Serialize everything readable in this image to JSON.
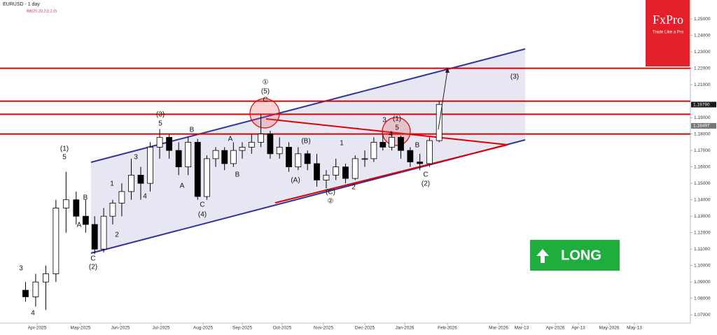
{
  "chart_data": {
    "type": "candlestick",
    "title": "EURUSD - 1 day",
    "subtitle": "BB(20,20,2,0,2,0)",
    "up_color": "#ffffff",
    "down_color": "#000000",
    "x": [
      "2025-03-24",
      "2025-03-31",
      "2025-04-07",
      "2025-04-14",
      "2025-04-21",
      "2025-04-28",
      "2025-05-05",
      "2025-05-12",
      "2025-05-19",
      "2025-05-26",
      "2025-06-02",
      "2025-06-09",
      "2025-06-16",
      "2025-06-23",
      "2025-06-30",
      "2025-07-07",
      "2025-07-14",
      "2025-07-21",
      "2025-07-28",
      "2025-08-04",
      "2025-08-11",
      "2025-08-18",
      "2025-08-25",
      "2025-09-01",
      "2025-09-08",
      "2025-09-15",
      "2025-09-22",
      "2025-09-29",
      "2025-10-06",
      "2025-10-13",
      "2025-10-20",
      "2025-10-27",
      "2025-11-03",
      "2025-11-10",
      "2025-11-17",
      "2025-11-24",
      "2025-12-01",
      "2025-12-08",
      "2025-12-15",
      "2025-12-22",
      "2025-12-29",
      "2026-01-05",
      "2026-01-12",
      "2026-01-19",
      "2026-01-26"
    ],
    "open": [
      1.085,
      1.081,
      1.09,
      1.095,
      1.135,
      1.14,
      1.13,
      1.125,
      1.11,
      1.13,
      1.138,
      1.145,
      1.155,
      1.15,
      1.172,
      1.178,
      1.17,
      1.16,
      1.175,
      1.142,
      1.165,
      1.17,
      1.162,
      1.17,
      1.172,
      1.175,
      1.18,
      1.168,
      1.172,
      1.16,
      1.168,
      1.162,
      1.152,
      1.155,
      1.16,
      1.153,
      1.165,
      1.165,
      1.175,
      1.172,
      1.178,
      1.17,
      1.163,
      1.162,
      1.176
    ],
    "high": [
      1.09,
      1.095,
      1.1,
      1.14,
      1.157,
      1.145,
      1.14,
      1.13,
      1.135,
      1.14,
      1.15,
      1.165,
      1.16,
      1.175,
      1.183,
      1.18,
      1.175,
      1.178,
      1.177,
      1.167,
      1.172,
      1.172,
      1.175,
      1.175,
      1.18,
      1.192,
      1.182,
      1.178,
      1.175,
      1.172,
      1.17,
      1.168,
      1.158,
      1.165,
      1.162,
      1.167,
      1.17,
      1.178,
      1.18,
      1.181,
      1.179,
      1.172,
      1.168,
      1.178,
      1.2
    ],
    "low": [
      1.078,
      1.075,
      1.073,
      1.09,
      1.12,
      1.125,
      1.12,
      1.107,
      1.108,
      1.125,
      1.13,
      1.14,
      1.14,
      1.145,
      1.165,
      1.165,
      1.155,
      1.155,
      1.14,
      1.14,
      1.16,
      1.158,
      1.16,
      1.165,
      1.168,
      1.172,
      1.165,
      1.165,
      1.157,
      1.158,
      1.158,
      1.148,
      1.147,
      1.152,
      1.15,
      1.152,
      1.16,
      1.163,
      1.17,
      1.17,
      1.165,
      1.16,
      1.158,
      1.16,
      1.175
    ],
    "close": [
      1.081,
      1.09,
      1.095,
      1.135,
      1.14,
      1.13,
      1.125,
      1.11,
      1.13,
      1.138,
      1.145,
      1.155,
      1.15,
      1.172,
      1.178,
      1.17,
      1.16,
      1.175,
      1.142,
      1.165,
      1.17,
      1.162,
      1.17,
      1.172,
      1.175,
      1.18,
      1.168,
      1.172,
      1.16,
      1.168,
      1.162,
      1.152,
      1.155,
      1.16,
      1.153,
      1.165,
      1.165,
      1.175,
      1.172,
      1.178,
      1.17,
      1.163,
      1.162,
      1.176,
      1.198
    ],
    "ylim": [
      1.065,
      1.2615
    ],
    "yticks": [
      {
        "value": 1.07,
        "label": "1.07000"
      },
      {
        "value": 1.08,
        "label": "1.08000"
      },
      {
        "value": 1.09,
        "label": "1.09000"
      },
      {
        "value": 1.1,
        "label": "1.10000"
      },
      {
        "value": 1.11,
        "label": "1.11000"
      },
      {
        "value": 1.12,
        "label": "1.12000"
      },
      {
        "value": 1.13,
        "label": "1.13000"
      },
      {
        "value": 1.14,
        "label": "1.14000"
      },
      {
        "value": 1.15,
        "label": "1.15000"
      },
      {
        "value": 1.16,
        "label": "1.16000"
      },
      {
        "value": 1.17,
        "label": "1.17000"
      },
      {
        "value": 1.18,
        "label": "1.18000"
      },
      {
        "value": 1.19,
        "label": "1.19000"
      },
      {
        "value": 1.21,
        "label": "1.21000"
      },
      {
        "value": 1.22,
        "label": "1.22000"
      },
      {
        "value": 1.23,
        "label": "1.23000"
      },
      {
        "value": 1.24,
        "label": "1.24000"
      },
      {
        "value": 1.25,
        "label": "1.25000"
      }
    ],
    "xticks": [
      {
        "value": "2025-04-01",
        "label": "Apr-2025"
      },
      {
        "value": "2025-05-01",
        "label": "May-2025"
      },
      {
        "value": "2025-06-01",
        "label": "Jun-2025"
      },
      {
        "value": "2025-07-01",
        "label": "Jul-2025"
      },
      {
        "value": "2025-08-01",
        "label": "Aug-2025"
      },
      {
        "value": "2025-09-01",
        "label": "Sep-2025"
      },
      {
        "value": "2025-10-01",
        "label": "Oct-2025"
      },
      {
        "value": "2025-11-01",
        "label": "Nov-2025"
      },
      {
        "value": "2025-12-01",
        "label": "Dec-2025"
      },
      {
        "value": "2026-01-01",
        "label": "Jan-2026"
      },
      {
        "value": "2026-02-01",
        "label": "Feb-2026"
      },
      {
        "value": "2026-03-01",
        "label": "Mar-2026"
      },
      {
        "value": "2026-03-13",
        "label": "Mar-13"
      },
      {
        "value": "2026-04-01",
        "label": "Apr-2026"
      },
      {
        "value": "2026-04-13",
        "label": "Apr-13"
      },
      {
        "value": "2026-05-01",
        "label": "May-2026"
      },
      {
        "value": "2026-05-13",
        "label": "May-13"
      }
    ],
    "price_labels": [
      {
        "value": 1.1979,
        "label": "1.19790"
      },
      {
        "value": 1.18497,
        "label": "1.18497"
      }
    ],
    "levels": [
      1.22,
      1.2,
      1.192,
      1.18
    ],
    "level_color": "#e00000",
    "annotations": [
      "(1)",
      "5",
      "3",
      "4",
      "B",
      "A",
      "C",
      "(2)",
      "1",
      "2",
      "3",
      "4",
      "(3)",
      "5",
      "B",
      "A",
      "C",
      "(4)",
      "A",
      "B",
      "①",
      "(5)",
      "C",
      "(B)",
      "(A)",
      "(C)",
      "②",
      "1",
      "2",
      "3",
      "(1)",
      "5",
      "4",
      "B",
      "C",
      "(2)",
      "(3)"
    ],
    "logo": {
      "brand": "FxPro",
      "tagline": "Trade Like a Pro"
    },
    "signal": "LONG"
  }
}
